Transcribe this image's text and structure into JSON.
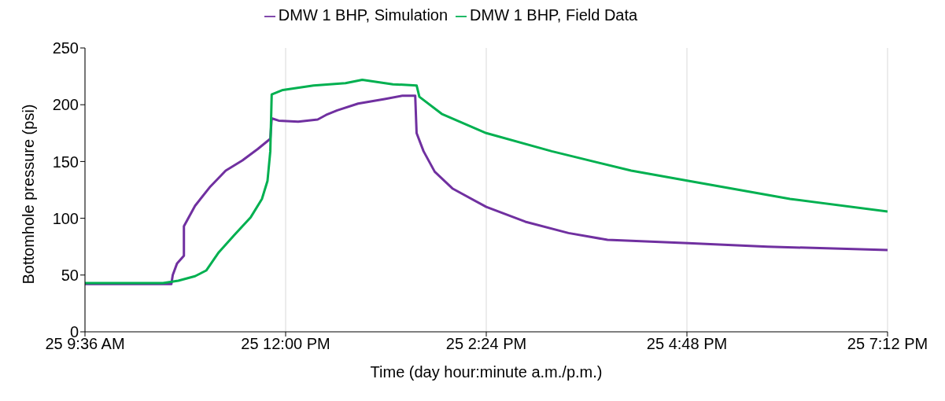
{
  "chart_data": {
    "type": "line",
    "xlabel": "Time (day hour:minute a.m./p.m.)",
    "ylabel": "Bottomhole pressure (psi)",
    "xlim": [
      "--01-25T09:36",
      "--01-25T19:12"
    ],
    "xticks": [
      {
        "value": "--01-25T09:36",
        "label": "25 9:36 AM"
      },
      {
        "value": "--01-25T12:00",
        "label": "25 12:00 PM"
      },
      {
        "value": "--01-25T14:24",
        "label": "25 2:24 PM"
      },
      {
        "value": "--01-25T16:48",
        "label": "25 4:48 PM"
      },
      {
        "value": "--01-25T19:12",
        "label": "25 7:12 PM"
      }
    ],
    "ylim": [
      0,
      250
    ],
    "yticks": [
      0,
      50,
      100,
      150,
      200,
      250
    ],
    "grid": "x",
    "legend": "top",
    "marker": "none",
    "line_style": "solid",
    "series": [
      {
        "name": "DMW 1 BHP, Simulation",
        "color": "#7030a0",
        "x": [
          "--01-25T09:36",
          "--01-25T10:38",
          "--01-25T10:39",
          "--01-25T10:42",
          "--01-25T10:47",
          "--01-25T10:47",
          "--01-25T10:55",
          "--01-25T11:06",
          "--01-25T11:17",
          "--01-25T11:29",
          "--01-25T11:40",
          "--01-25T11:49",
          "--01-25T11:50",
          "--01-25T11:55",
          "--01-25T12:09",
          "--01-25T12:23",
          "--01-25T12:29",
          "--01-25T12:37",
          "--01-25T12:52",
          "--01-25T13:11",
          "--01-25T13:24",
          "--01-25T13:33",
          "--01-25T13:34",
          "--01-25T13:39",
          "--01-25T13:47",
          "--01-25T14:00",
          "--01-25T14:24",
          "--01-25T14:52",
          "--01-25T15:23",
          "--01-25T15:51",
          "--01-25T16:49",
          "--01-25T17:46",
          "--01-25T19:12"
        ],
        "values": [
          42,
          42,
          50,
          60,
          67,
          93,
          111,
          128,
          142,
          151,
          161,
          170,
          188,
          186,
          185,
          187,
          191,
          195,
          201,
          205,
          208,
          208,
          175,
          159,
          141,
          126,
          110,
          97,
          87,
          81,
          78,
          75,
          72
        ]
      },
      {
        "name": "DMW 1 BHP, Field Data",
        "color": "#00b050",
        "x": [
          "--01-25T09:36",
          "--01-25T10:32",
          "--01-25T10:43",
          "--01-25T10:55",
          "--01-25T11:03",
          "--01-25T11:12",
          "--01-25T11:23",
          "--01-25T11:35",
          "--01-25T11:43",
          "--01-25T11:47",
          "--01-25T11:49",
          "--01-25T11:50",
          "--01-25T11:58",
          "--01-25T12:20",
          "--01-25T12:43",
          "--01-25T12:55",
          "--01-25T13:17",
          "--01-25T13:34",
          "--01-25T13:36",
          "--01-25T13:52",
          "--01-25T14:24",
          "--01-25T15:11",
          "--01-25T16:08",
          "--01-25T16:49",
          "--01-25T18:02",
          "--01-25T19:12"
        ],
        "values": [
          43,
          43,
          45,
          49,
          54,
          70,
          85,
          101,
          117,
          133,
          159,
          209,
          213,
          217,
          219,
          222,
          218,
          217,
          207,
          192,
          175,
          159,
          142,
          133,
          117,
          106
        ]
      }
    ]
  }
}
